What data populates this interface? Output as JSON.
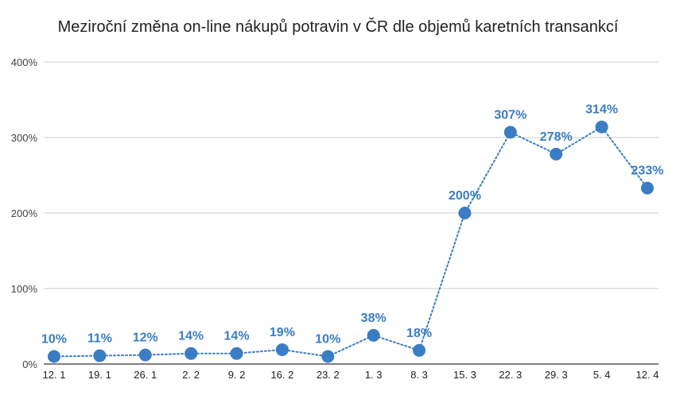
{
  "chart_data": {
    "type": "line",
    "title": "Meziroční změna on-line nákupů potravin v ČR dle objemů karetních transankcí",
    "xlabel": "",
    "ylabel": "",
    "categories": [
      "12. 1",
      "19. 1",
      "26. 1",
      "2. 2",
      "9. 2",
      "16. 2",
      "23. 2",
      "1. 3",
      "8. 3",
      "15. 3",
      "22. 3",
      "29. 3",
      "5. 4",
      "12. 4"
    ],
    "series": [
      {
        "values": [
          10,
          11,
          12,
          14,
          14,
          19,
          10,
          38,
          18,
          200,
          307,
          278,
          314,
          233
        ],
        "labels": [
          "10%",
          "11%",
          "12%",
          "14%",
          "14%",
          "19%",
          "10%",
          "38%",
          "18%",
          "200%",
          "307%",
          "278%",
          "314%",
          "233%"
        ]
      }
    ],
    "ylim": [
      0,
      400
    ],
    "yticks": [
      0,
      100,
      200,
      300,
      400
    ],
    "ytick_labels": [
      "0%",
      "100%",
      "200%",
      "300%",
      "400%"
    ],
    "grid": true,
    "line_style": "dotted",
    "colors": {
      "series": "#3a7dc4",
      "label": "#3a7dc4",
      "grid": "#cccccc",
      "axis": "#333333"
    }
  }
}
